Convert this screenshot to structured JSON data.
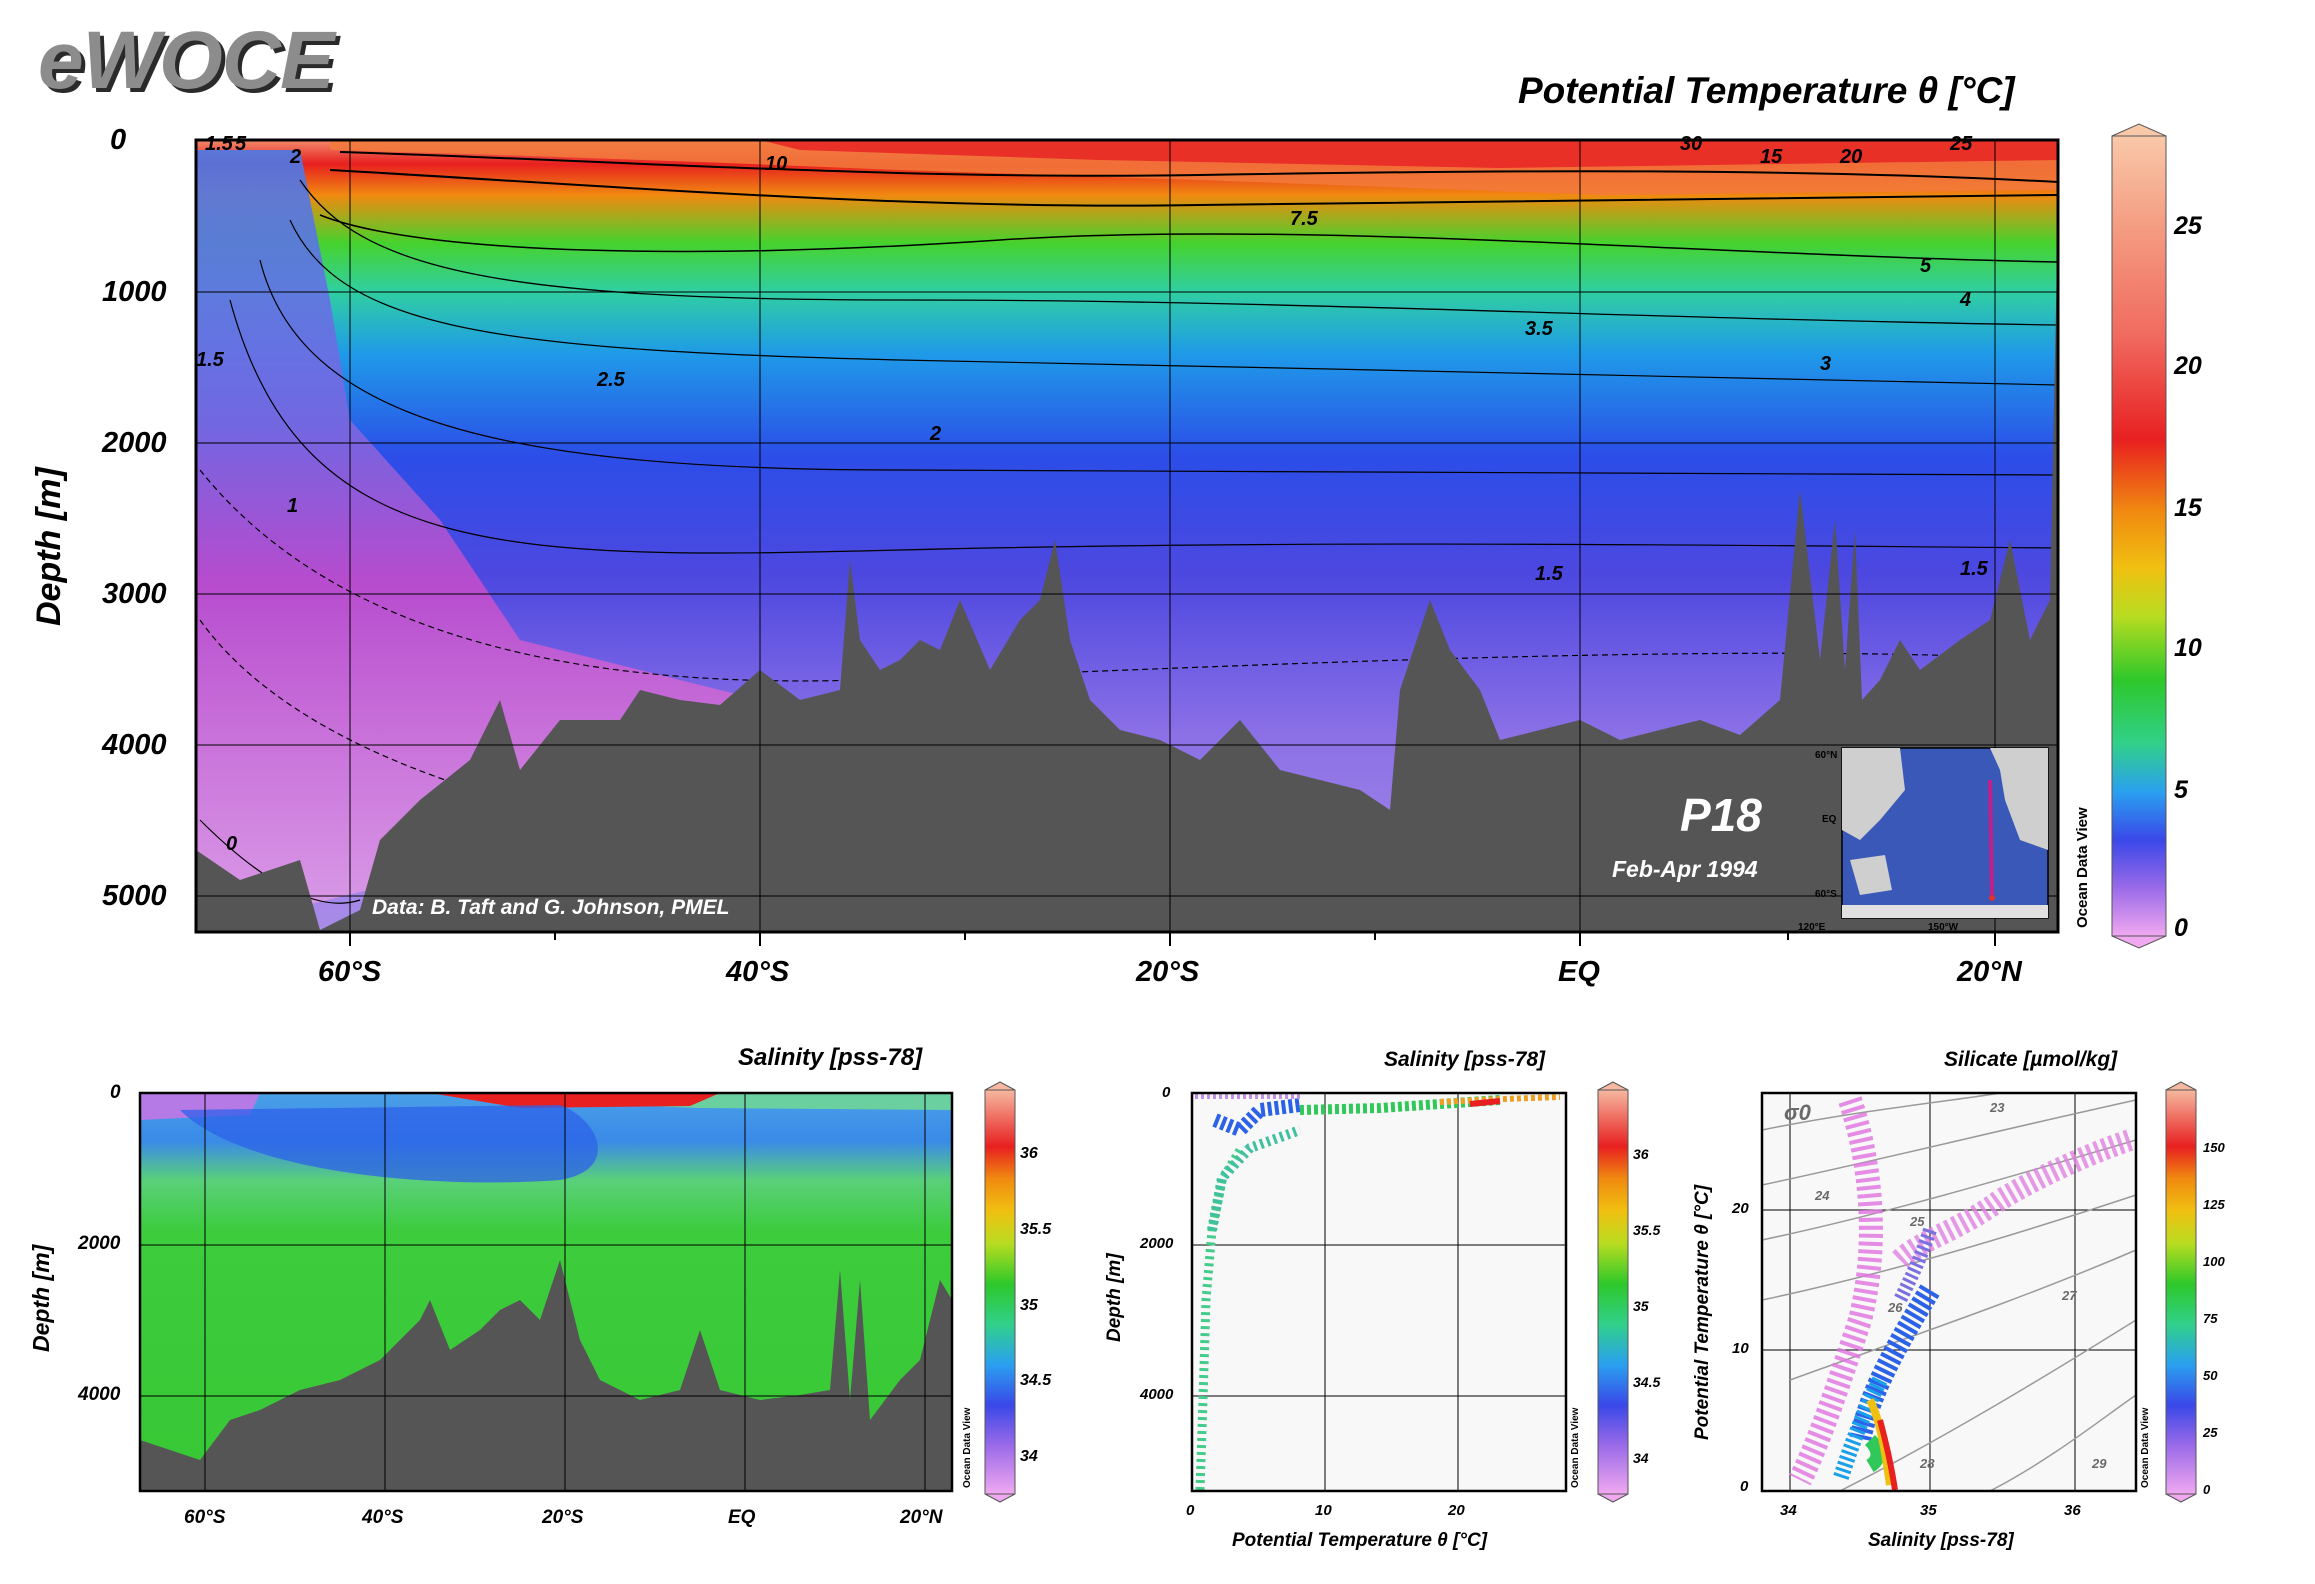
{
  "brand": "eWOCE",
  "main": {
    "title": "Potential Temperature θ [°C]",
    "ylabel": "Depth [m]",
    "yticks": [
      "0",
      "1000",
      "2000",
      "3000",
      "4000",
      "5000"
    ],
    "xticks": [
      "60°S",
      "40°S",
      "20°S",
      "EQ",
      "20°N"
    ],
    "colorbar_ticks": [
      "0",
      "5",
      "10",
      "15",
      "20",
      "25"
    ],
    "contour_labels": [
      "30",
      "15",
      "20",
      "25",
      "10",
      "7.5",
      "5",
      "4",
      "3.5",
      "3",
      "2.5",
      "2",
      "1.5",
      "1.5",
      "1.5",
      "1",
      "0",
      "2",
      "5",
      "1.5"
    ],
    "cruise": "P18",
    "dates": "Feb-Apr 1994",
    "credit": "Data: B. Taft and G. Johnson, PMEL",
    "inset_labels": [
      "60°N",
      "EQ",
      "60°S",
      "120°E",
      "150°W"
    ],
    "odv": "Ocean Data View"
  },
  "panel_salinity": {
    "title": "Salinity [pss-78]",
    "ylabel": "Depth [m]",
    "yticks": [
      "0",
      "2000",
      "4000"
    ],
    "xticks": [
      "60°S",
      "40°S",
      "20°S",
      "EQ",
      "20°N"
    ],
    "colorbar_ticks": [
      "34",
      "34.5",
      "35",
      "35.5",
      "36"
    ],
    "odv": "Ocean Data View"
  },
  "panel_profile": {
    "title": "Salinity [pss-78]",
    "ylabel": "Depth [m]",
    "xlabel": "Potential Temperature θ [°C]",
    "yticks": [
      "0",
      "2000",
      "4000"
    ],
    "xticks": [
      "0",
      "10",
      "20"
    ],
    "colorbar_ticks": [
      "34",
      "34.5",
      "35",
      "35.5",
      "36"
    ],
    "odv": "Ocean Data View"
  },
  "panel_ts": {
    "title": "Silicate [µmol/kg]",
    "ylabel": "Potential Temperature θ [°C]",
    "xlabel": "Salinity [pss-78]",
    "yticks": [
      "0",
      "10",
      "20"
    ],
    "xticks": [
      "34",
      "35",
      "36"
    ],
    "sigma_label": "σ0",
    "isopycnal_labels": [
      "23",
      "24",
      "25",
      "26",
      "27",
      "28",
      "29"
    ],
    "colorbar_ticks": [
      "0",
      "25",
      "50",
      "75",
      "100",
      "125",
      "150"
    ],
    "odv": "Ocean Data View"
  },
  "colors": {
    "seafloor": "#555555",
    "frame": "#000000"
  }
}
